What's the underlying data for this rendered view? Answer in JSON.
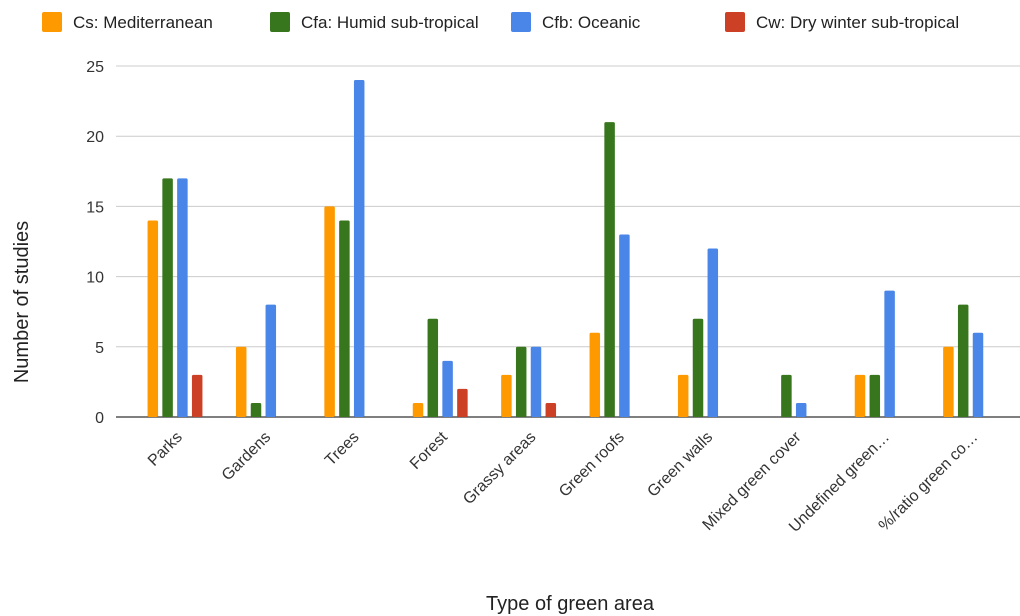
{
  "chart_data": {
    "type": "bar",
    "xlabel": "Type of green area",
    "ylabel": "Number of studies",
    "ylim": [
      0,
      25
    ],
    "yticks": [
      0,
      5,
      10,
      15,
      20,
      25
    ],
    "grid": true,
    "legend_position": "top",
    "categories": [
      "Parks",
      "Gardens",
      "Trees",
      "Forest",
      "Grassy areas",
      "Green roofs",
      "Green walls",
      "Mixed green cover",
      "Undefined green…",
      "%/ratio green co…"
    ],
    "series": [
      {
        "name": "Cs: Mediterranean",
        "color": "#FF9900",
        "values": [
          14,
          5,
          15,
          1,
          3,
          6,
          3,
          0,
          3,
          5
        ]
      },
      {
        "name": "Cfa: Humid sub-tropical",
        "color": "#38761D",
        "values": [
          17,
          1,
          14,
          7,
          5,
          21,
          7,
          3,
          3,
          8
        ]
      },
      {
        "name": "Cfb: Oceanic",
        "color": "#4A86E8",
        "values": [
          17,
          8,
          24,
          4,
          5,
          13,
          12,
          1,
          9,
          6
        ]
      },
      {
        "name": "Cw: Dry winter sub-tropical",
        "color": "#CC4125",
        "values": [
          3,
          0,
          0,
          2,
          1,
          0,
          0,
          0,
          0,
          0
        ]
      }
    ]
  }
}
